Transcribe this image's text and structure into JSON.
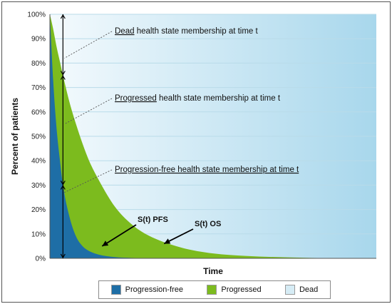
{
  "chart_data": {
    "type": "area",
    "xlabel": "Time",
    "ylabel": "Percent of patients",
    "ylim": [
      0,
      100
    ],
    "yticks": [
      "0%",
      "10%",
      "20%",
      "30%",
      "40%",
      "50%",
      "60%",
      "70%",
      "80%",
      "90%",
      "100%"
    ],
    "grid": true,
    "legend_position": "bottom",
    "marked_time": 0.04,
    "series": [
      {
        "name": "Progression-free",
        "x": [
          0,
          0.01,
          0.02,
          0.03,
          0.04,
          0.06,
          0.08,
          0.1,
          0.12,
          0.15,
          0.2,
          0.25,
          0.3,
          0.4,
          0.5,
          0.6,
          0.8,
          1.0
        ],
        "values": [
          100,
          73,
          54,
          41,
          30,
          17,
          9,
          5,
          3,
          1.5,
          0.5,
          0.2,
          0.1,
          0,
          0,
          0,
          0,
          0
        ],
        "color": "#1e6ea6"
      },
      {
        "name": "Progressed",
        "x": [
          0,
          0.01,
          0.02,
          0.03,
          0.04,
          0.06,
          0.08,
          0.1,
          0.12,
          0.15,
          0.2,
          0.25,
          0.3,
          0.4,
          0.5,
          0.6,
          0.8,
          1.0
        ],
        "values": [
          100,
          94,
          87,
          81,
          75,
          64,
          55,
          47,
          40,
          32,
          21,
          14,
          9.5,
          4.5,
          2,
          1,
          0.2,
          0
        ],
        "color": "#7cbb1e"
      },
      {
        "name": "Dead",
        "color": "#d6ecf5"
      }
    ],
    "annotations": [
      {
        "underlined": "Dead",
        "rest": " health state membership at time t",
        "point": [
          0.04,
          82
        ]
      },
      {
        "underlined": "Progressed",
        "rest": " health state membership at time t",
        "point": [
          0.04,
          55
        ]
      },
      {
        "underlined": "Progression-free health state membership at time t",
        "rest": "",
        "point": [
          0.04,
          27
        ]
      }
    ],
    "curve_labels": [
      {
        "text": "S(t) PFS",
        "target": [
          0.16,
          5
        ]
      },
      {
        "text": "S(t) OS",
        "target": [
          0.35,
          6
        ]
      }
    ]
  }
}
